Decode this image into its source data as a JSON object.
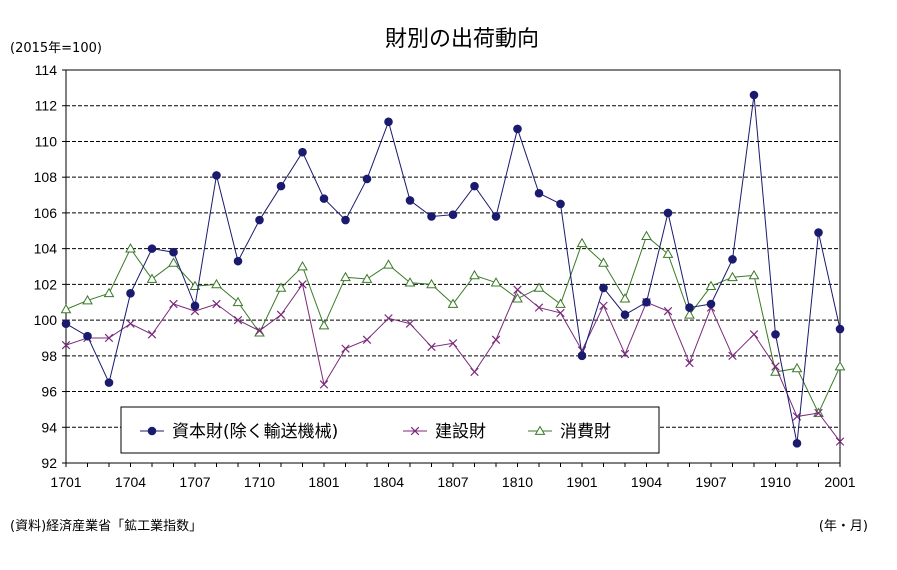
{
  "chart_data": {
    "type": "line",
    "title": "財別の出荷動向",
    "unit_label": "(2015年=100)",
    "source": "(資料)経済産業省「鉱工業指数」",
    "xlabel": "(年・月)",
    "ylim": [
      92,
      114
    ],
    "yticks": [
      92,
      94,
      96,
      98,
      100,
      102,
      104,
      106,
      108,
      110,
      112,
      114
    ],
    "grid": true,
    "legend_position": "bottom",
    "x": [
      "1701",
      "1702",
      "1703",
      "1704",
      "1705",
      "1706",
      "1707",
      "1708",
      "1709",
      "1710",
      "1711",
      "1712",
      "1801",
      "1802",
      "1803",
      "1804",
      "1805",
      "1806",
      "1807",
      "1808",
      "1809",
      "1810",
      "1811",
      "1812",
      "1901",
      "1902",
      "1903",
      "1904",
      "1905",
      "1906",
      "1907",
      "1908",
      "1909",
      "1910",
      "1911",
      "1912",
      "2001"
    ],
    "xtick_labels": [
      "1701",
      "1704",
      "1707",
      "1710",
      "1801",
      "1804",
      "1807",
      "1810",
      "1901",
      "1904",
      "1907",
      "1910",
      "2001"
    ],
    "series": [
      {
        "name": "資本財(除く輸送機械)",
        "marker": "circle",
        "color": "#1a1a6e",
        "values": [
          99.8,
          99.1,
          96.5,
          101.5,
          104.0,
          103.8,
          100.8,
          108.1,
          103.3,
          105.6,
          107.5,
          109.4,
          106.8,
          105.6,
          107.9,
          111.1,
          106.7,
          105.8,
          105.9,
          107.5,
          105.8,
          110.7,
          107.1,
          106.5,
          98.0,
          101.8,
          100.3,
          101.0,
          106.0,
          100.7,
          100.9,
          103.4,
          112.6,
          99.2,
          93.1,
          104.9,
          99.5
        ]
      },
      {
        "name": "建設財",
        "marker": "x",
        "color": "#7a2a7a",
        "values": [
          98.6,
          99.0,
          99.0,
          99.8,
          99.2,
          100.9,
          100.5,
          100.9,
          100.0,
          99.4,
          100.3,
          102.0,
          96.4,
          98.4,
          98.9,
          100.1,
          99.8,
          98.5,
          98.7,
          97.1,
          98.9,
          101.7,
          100.7,
          100.4,
          98.3,
          100.8,
          98.1,
          101.0,
          100.5,
          97.6,
          100.7,
          98.0,
          99.2,
          97.4,
          94.6,
          94.8,
          93.2
        ]
      },
      {
        "name": "消費財",
        "marker": "triangle",
        "color": "#3a7a28",
        "values": [
          100.6,
          101.1,
          101.5,
          104.0,
          102.3,
          103.2,
          101.9,
          102.0,
          101.0,
          99.3,
          101.8,
          103.0,
          99.7,
          102.4,
          102.3,
          103.1,
          102.1,
          102.0,
          100.9,
          102.5,
          102.1,
          101.2,
          101.8,
          100.9,
          104.3,
          103.2,
          101.2,
          104.7,
          103.7,
          100.3,
          101.9,
          102.4,
          102.5,
          97.1,
          97.3,
          94.8,
          97.4
        ]
      }
    ]
  }
}
